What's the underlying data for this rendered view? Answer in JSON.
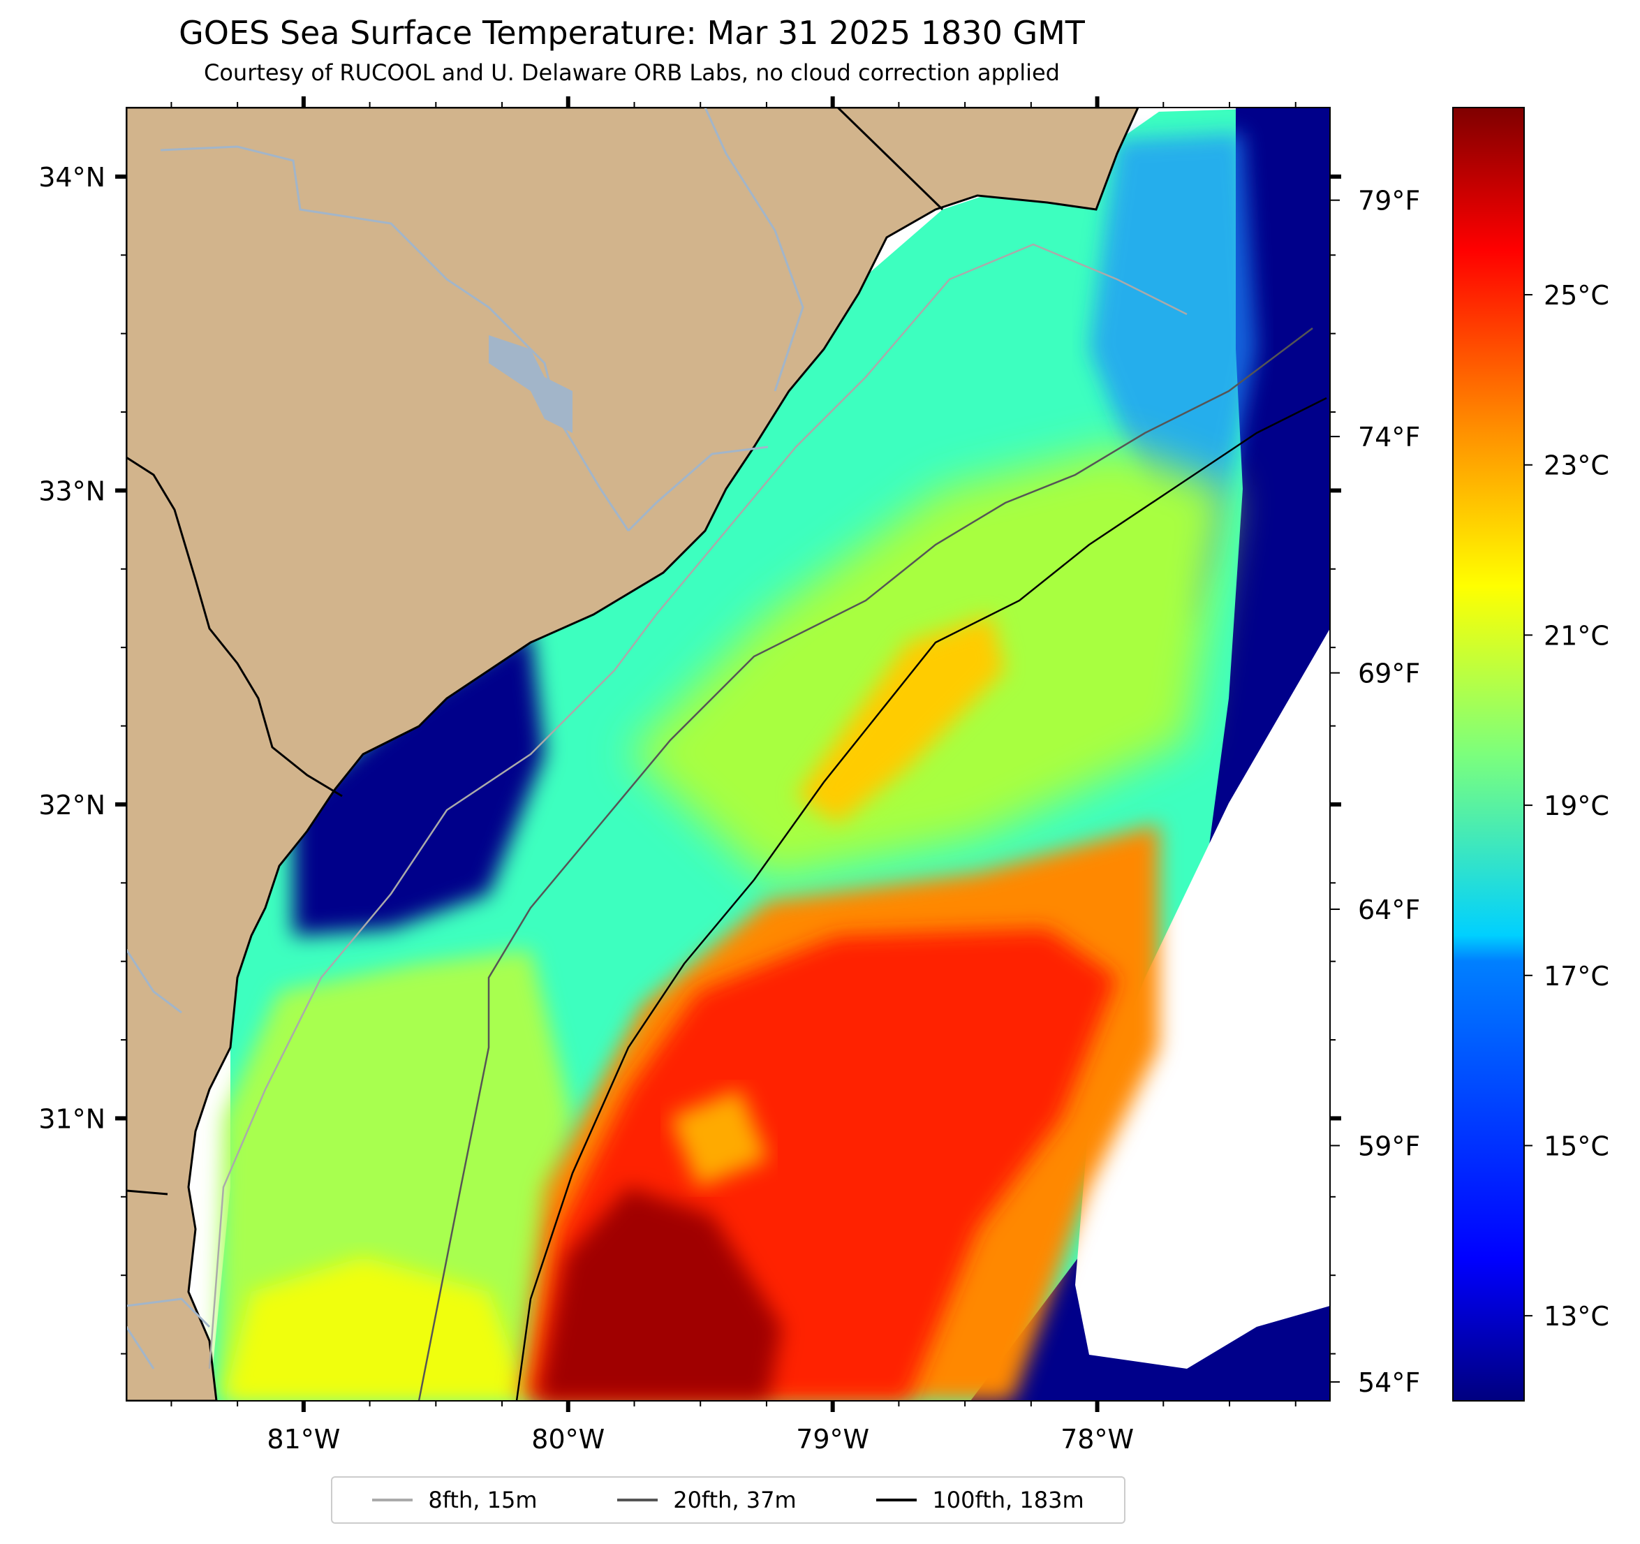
{
  "title": "GOES Sea Surface Temperature: Mar 31 2025 1830 GMT",
  "subtitle": "Courtesy of RUCOOL and U. Delaware ORB Labs, no cloud correction applied",
  "map": {
    "lon_range": [
      -81.67,
      -77.12
    ],
    "lat_range": [
      30.1,
      34.22
    ],
    "lon_ticks": [
      {
        "value": -81,
        "label": "81°W"
      },
      {
        "value": -80,
        "label": "80°W"
      },
      {
        "value": -79,
        "label": "79°W"
      },
      {
        "value": -78,
        "label": "78°W"
      }
    ],
    "lat_ticks": [
      {
        "value": 34,
        "label": "34°N"
      },
      {
        "value": 33,
        "label": "33°N"
      },
      {
        "value": 32,
        "label": "32°N"
      },
      {
        "value": 31,
        "label": "31°N"
      }
    ],
    "colors": {
      "land": "#d2b48c",
      "rivers": "#a2b5c9",
      "coast": "#000000"
    }
  },
  "colorbar": {
    "colormap": "jet",
    "range_c": [
      12,
      27.2
    ],
    "celsius_ticks": [
      {
        "value": 13,
        "label": "13°C"
      },
      {
        "value": 15,
        "label": "15°C"
      },
      {
        "value": 17,
        "label": "17°C"
      },
      {
        "value": 19,
        "label": "19°C"
      },
      {
        "value": 21,
        "label": "21°C"
      },
      {
        "value": 23,
        "label": "23°C"
      },
      {
        "value": 25,
        "label": "25°C"
      }
    ],
    "fahrenheit_ticks": [
      {
        "value": 54,
        "label": "54°F"
      },
      {
        "value": 59,
        "label": "59°F"
      },
      {
        "value": 64,
        "label": "64°F"
      },
      {
        "value": 69,
        "label": "69°F"
      },
      {
        "value": 74,
        "label": "74°F"
      },
      {
        "value": 79,
        "label": "79°F"
      }
    ]
  },
  "legend": [
    {
      "label": "8fth, 15m",
      "color": "#aaaaaa"
    },
    {
      "label": "20fth, 37m",
      "color": "#555555"
    },
    {
      "label": "100fth, 183m",
      "color": "#000000"
    }
  ]
}
